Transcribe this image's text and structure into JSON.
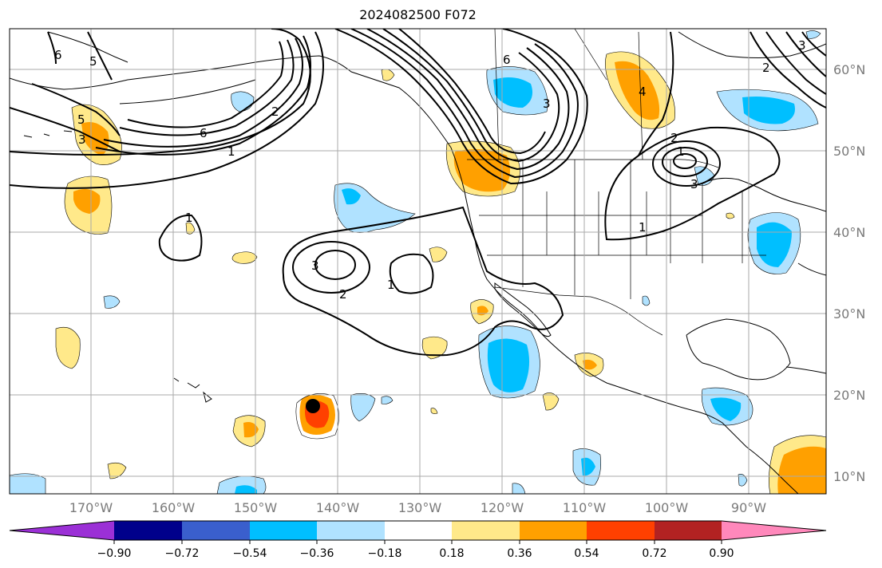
{
  "title": "2024082500 F072",
  "map": {
    "lat_labels": [
      "60°N",
      "50°N",
      "40°N",
      "30°N",
      "20°N",
      "10°N"
    ],
    "lon_labels": [
      "170°W",
      "160°W",
      "150°W",
      "140°W",
      "130°W",
      "120°W",
      "110°W",
      "100°W",
      "90°W"
    ],
    "contour_labels": [
      "6",
      "5",
      "4",
      "3",
      "2",
      "1"
    ]
  },
  "colorbar": {
    "tick_labels": [
      "−0.90",
      "−0.72",
      "−0.54",
      "−0.36",
      "−0.18",
      "0.18",
      "0.36",
      "0.54",
      "0.72",
      "0.90"
    ],
    "colors": [
      "#9b30d6",
      "#00008b",
      "#3a5fcd",
      "#00bfff",
      "#b0e2ff",
      "#ffffff",
      "#ffe98a",
      "#ffa000",
      "#ff4000",
      "#b22222",
      "#ff88bb"
    ]
  },
  "legend_colors": {
    "neg_light": "#b0e2ff",
    "neg_mid": "#00bfff",
    "pos_light": "#ffe98a",
    "pos_mid": "#ffa000",
    "pos_strong": "#ff4000"
  }
}
